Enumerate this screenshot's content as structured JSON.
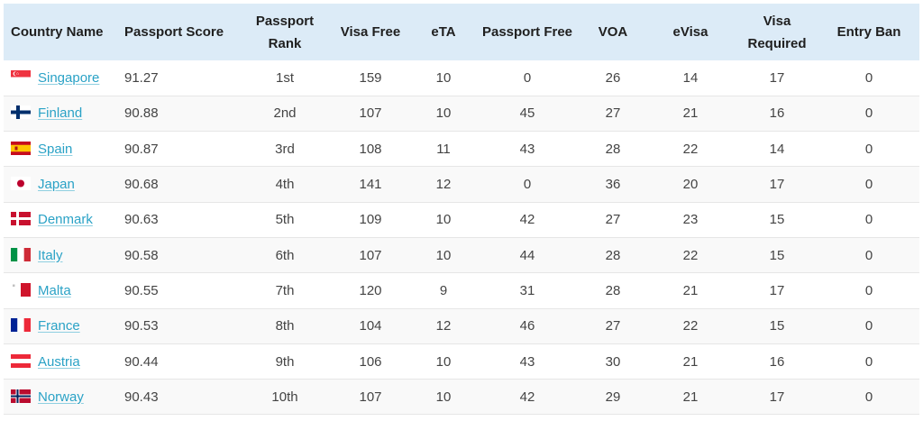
{
  "headers": {
    "country": "Country Name",
    "score": "Passport Score",
    "rank": "Passport Rank",
    "visa_free": "Visa Free",
    "eta": "eTA",
    "passport_free": "Passport Free",
    "voa": "VOA",
    "evisa": "eVisa",
    "visa_required": "Visa Required",
    "entry_ban": "Entry Ban"
  },
  "rows": [
    {
      "country": "Singapore",
      "flag": "singapore-flag-icon",
      "score": "91.27",
      "rank": "1st",
      "visa_free": "159",
      "eta": "10",
      "passport_free": "0",
      "voa": "26",
      "evisa": "14",
      "visa_required": "17",
      "entry_ban": "0"
    },
    {
      "country": "Finland",
      "flag": "finland-flag-icon",
      "score": "90.88",
      "rank": "2nd",
      "visa_free": "107",
      "eta": "10",
      "passport_free": "45",
      "voa": "27",
      "evisa": "21",
      "visa_required": "16",
      "entry_ban": "0"
    },
    {
      "country": "Spain",
      "flag": "spain-flag-icon",
      "score": "90.87",
      "rank": "3rd",
      "visa_free": "108",
      "eta": "11",
      "passport_free": "43",
      "voa": "28",
      "evisa": "22",
      "visa_required": "14",
      "entry_ban": "0"
    },
    {
      "country": "Japan",
      "flag": "japan-flag-icon",
      "score": "90.68",
      "rank": "4th",
      "visa_free": "141",
      "eta": "12",
      "passport_free": "0",
      "voa": "36",
      "evisa": "20",
      "visa_required": "17",
      "entry_ban": "0"
    },
    {
      "country": "Denmark",
      "flag": "denmark-flag-icon",
      "score": "90.63",
      "rank": "5th",
      "visa_free": "109",
      "eta": "10",
      "passport_free": "42",
      "voa": "27",
      "evisa": "23",
      "visa_required": "15",
      "entry_ban": "0"
    },
    {
      "country": "Italy",
      "flag": "italy-flag-icon",
      "score": "90.58",
      "rank": "6th",
      "visa_free": "107",
      "eta": "10",
      "passport_free": "44",
      "voa": "28",
      "evisa": "22",
      "visa_required": "15",
      "entry_ban": "0"
    },
    {
      "country": "Malta",
      "flag": "malta-flag-icon",
      "score": "90.55",
      "rank": "7th",
      "visa_free": "120",
      "eta": "9",
      "passport_free": "31",
      "voa": "28",
      "evisa": "21",
      "visa_required": "17",
      "entry_ban": "0"
    },
    {
      "country": "France",
      "flag": "france-flag-icon",
      "score": "90.53",
      "rank": "8th",
      "visa_free": "104",
      "eta": "12",
      "passport_free": "46",
      "voa": "27",
      "evisa": "22",
      "visa_required": "15",
      "entry_ban": "0"
    },
    {
      "country": "Austria",
      "flag": "austria-flag-icon",
      "score": "90.44",
      "rank": "9th",
      "visa_free": "106",
      "eta": "10",
      "passport_free": "43",
      "voa": "30",
      "evisa": "21",
      "visa_required": "16",
      "entry_ban": "0"
    },
    {
      "country": "Norway",
      "flag": "norway-flag-icon",
      "score": "90.43",
      "rank": "10th",
      "visa_free": "107",
      "eta": "10",
      "passport_free": "42",
      "voa": "29",
      "evisa": "21",
      "visa_required": "17",
      "entry_ban": "0"
    }
  ],
  "colors": {
    "header_bg": "#dcebf7",
    "link": "#2aa2c6"
  }
}
